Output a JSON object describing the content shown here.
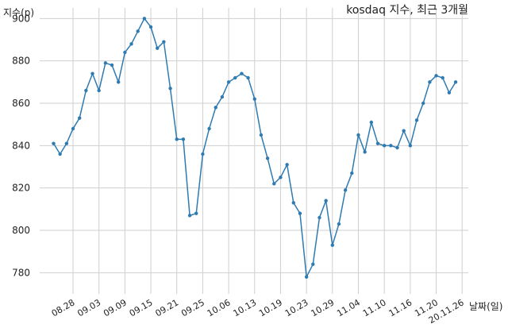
{
  "chart_data": {
    "type": "line",
    "title": "kosdaq 지수, 최근 3개월",
    "xlabel": "날짜(일)",
    "ylabel": "지수(p)",
    "ylim": [
      770,
      905
    ],
    "yticks": [
      780,
      800,
      820,
      840,
      860,
      880,
      900
    ],
    "xticks": [
      "08.28",
      "09.03",
      "09.09",
      "09.15",
      "09.21",
      "09.25",
      "10.06",
      "10.13",
      "10.19",
      "10.23",
      "10.29",
      "11.04",
      "11.10",
      "11.16",
      "11.20",
      "20.11.26"
    ],
    "xtick_positions": [
      3,
      7,
      11,
      15,
      19,
      23,
      27,
      31,
      35,
      39,
      43,
      47,
      51,
      55,
      59,
      63
    ],
    "grid": true,
    "line_color": "#2f7bb1",
    "series": [
      {
        "values": [
          841,
          836,
          841,
          848,
          853,
          866,
          874,
          866,
          879,
          878,
          870,
          884,
          888,
          894,
          900,
          896,
          886,
          889,
          867,
          843,
          843,
          807,
          808,
          836,
          848,
          858,
          863,
          870,
          872,
          874,
          872,
          862,
          845,
          834,
          822,
          825,
          831,
          813,
          808,
          778,
          784,
          806,
          814,
          793,
          803,
          819,
          827,
          845,
          837,
          851,
          841,
          840,
          840,
          839,
          847,
          840,
          852,
          860,
          870,
          873,
          872,
          865,
          870
        ]
      }
    ]
  }
}
